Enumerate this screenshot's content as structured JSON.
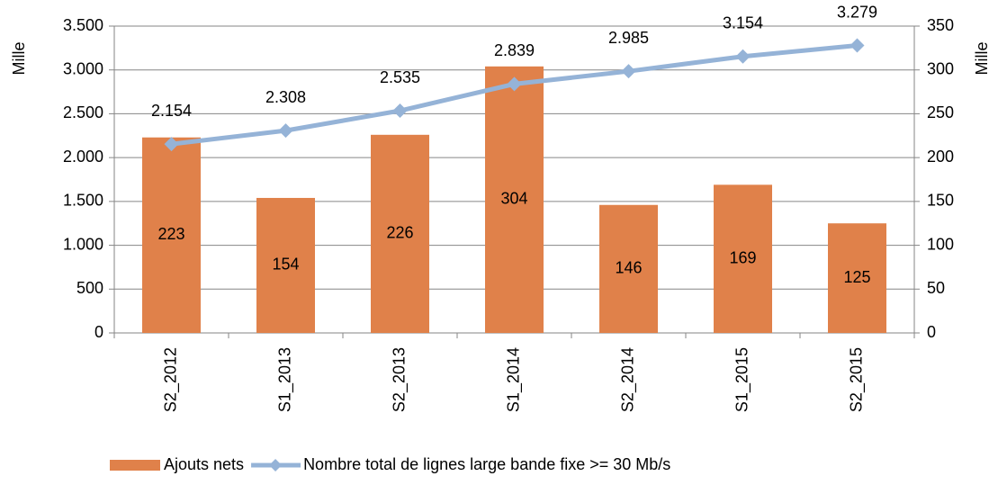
{
  "chart_data": {
    "type": "combo",
    "categories": [
      "S2_2012",
      "S1_2013",
      "S2_2013",
      "S1_2014",
      "S2_2014",
      "S1_2015",
      "S2_2015"
    ],
    "ylabel": "Mille",
    "y2label": "Mille",
    "ylim": [
      0,
      3500
    ],
    "yticks": [
      0,
      500,
      {
        "value": 1000,
        "label": "1.000"
      },
      {
        "value": 1500,
        "label": "1.500"
      },
      {
        "value": 2000,
        "label": "2.000"
      },
      {
        "value": 2500,
        "label": "2.500"
      },
      {
        "value": 3000,
        "label": "3.000"
      },
      {
        "value": 3500,
        "label": "3.500"
      }
    ],
    "y2lim": [
      0,
      350
    ],
    "y2ticks": [
      0,
      50,
      100,
      150,
      200,
      250,
      300,
      350
    ],
    "grid": true,
    "legend": "bottom",
    "series": [
      {
        "name": "Ajouts nets",
        "type": "bar",
        "axis": "y2",
        "color": "#e0814a",
        "values": [
          223,
          154,
          226,
          304,
          146,
          169,
          125
        ]
      },
      {
        "name": "Nombre total de lignes large bande fixe >= 30 Mb/s",
        "type": "line",
        "axis": "y",
        "color": "#95b3d7",
        "values": [
          2154,
          2308,
          2535,
          2839,
          2985,
          3154,
          3279
        ],
        "value_labels": [
          "2.154",
          "2.308",
          "2.535",
          "2.839",
          "2.985",
          "3.154",
          "3.279"
        ]
      }
    ]
  }
}
